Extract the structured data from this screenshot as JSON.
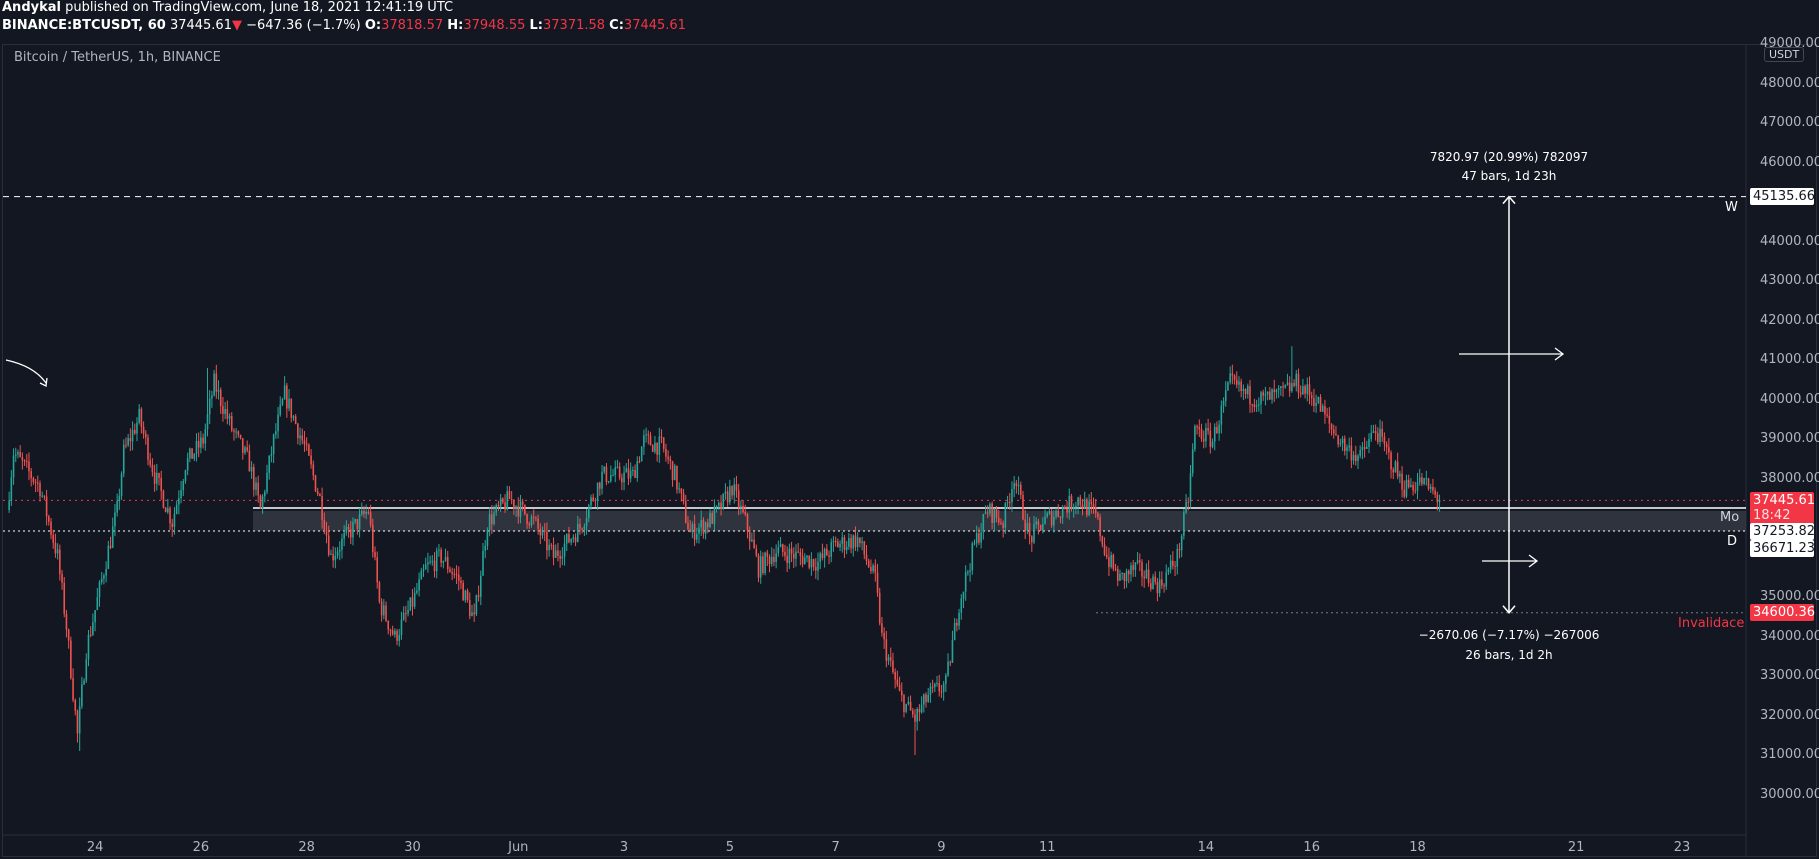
{
  "header": {
    "author": "Andykal",
    "published": "published on TradingView.com, June 18, 2021 12:41:19 UTC",
    "symbol": "BINANCE:BTCUSDT, 60",
    "last": "37445.61",
    "change": "−647.36 (−1.7%)",
    "o_label": "O:",
    "o": "37818.57",
    "h_label": "H:",
    "h": "37948.55",
    "l_label": "L:",
    "l": "37371.58",
    "c_label": "C:",
    "c": "37445.61"
  },
  "subtitle": "Bitcoin / TetherUS, 1h, BINANCE",
  "currency": "USDT",
  "colors": {
    "bg": "#131722",
    "up": "#26a69a",
    "down": "#ef5350",
    "accent_red": "#f23645"
  },
  "chart_data": {
    "type": "candlestick",
    "title": "Bitcoin / TetherUS, 1h, BINANCE",
    "ylim": [
      29000,
      49500
    ],
    "y_ticks": [
      49000,
      48000,
      47000,
      46000,
      45000,
      44000,
      43000,
      42000,
      41000,
      40000,
      39000,
      38000,
      37000,
      36000,
      35000,
      34000,
      33000,
      32000,
      31000,
      30000
    ],
    "y_ticks_hidden": [
      45000,
      37000,
      36000
    ],
    "x_ticks": [
      {
        "label": "24",
        "day": 0
      },
      {
        "label": "26",
        "day": 2
      },
      {
        "label": "28",
        "day": 4
      },
      {
        "label": "30",
        "day": 6
      },
      {
        "label": "Jun",
        "day": 8
      },
      {
        "label": "3",
        "day": 10
      },
      {
        "label": "5",
        "day": 12
      },
      {
        "label": "7",
        "day": 14
      },
      {
        "label": "9",
        "day": 16
      },
      {
        "label": "11",
        "day": 18
      },
      {
        "label": "14",
        "day": 21
      },
      {
        "label": "16",
        "day": 23
      },
      {
        "label": "18",
        "day": 25
      },
      {
        "label": "21",
        "day": 28
      },
      {
        "label": "23",
        "day": 30
      }
    ],
    "close_anchors_hours_from_may24": [
      [
        -40,
        37200
      ],
      [
        -37,
        38660
      ],
      [
        -25,
        37780
      ],
      [
        -17,
        36020
      ],
      [
        -13,
        34260
      ],
      [
        -8,
        31500
      ],
      [
        -4,
        33670
      ],
      [
        3,
        35430
      ],
      [
        10,
        37200
      ],
      [
        13,
        38660
      ],
      [
        20,
        39540
      ],
      [
        27,
        38080
      ],
      [
        35,
        36900
      ],
      [
        41,
        38370
      ],
      [
        49,
        38960
      ],
      [
        54,
        40420
      ],
      [
        62,
        39250
      ],
      [
        70,
        38370
      ],
      [
        75,
        37200
      ],
      [
        81,
        38960
      ],
      [
        86,
        40130
      ],
      [
        95,
        38810
      ],
      [
        102,
        37490
      ],
      [
        107,
        36020
      ],
      [
        115,
        36610
      ],
      [
        124,
        37200
      ],
      [
        129,
        34850
      ],
      [
        136,
        33970
      ],
      [
        144,
        34850
      ],
      [
        150,
        35730
      ],
      [
        157,
        36020
      ],
      [
        165,
        35430
      ],
      [
        172,
        34400
      ],
      [
        178,
        36900
      ],
      [
        188,
        37490
      ],
      [
        199,
        36900
      ],
      [
        208,
        36020
      ],
      [
        220,
        36760
      ],
      [
        230,
        38080
      ],
      [
        244,
        38080
      ],
      [
        249,
        38960
      ],
      [
        257,
        38810
      ],
      [
        263,
        38080
      ],
      [
        270,
        36610
      ],
      [
        278,
        36900
      ],
      [
        283,
        37200
      ],
      [
        289,
        37780
      ],
      [
        296,
        36760
      ],
      [
        301,
        35730
      ],
      [
        309,
        36170
      ],
      [
        320,
        36020
      ],
      [
        328,
        35870
      ],
      [
        336,
        36320
      ],
      [
        346,
        36460
      ],
      [
        354,
        35430
      ],
      [
        357,
        33970
      ],
      [
        365,
        32500
      ],
      [
        372,
        31910
      ],
      [
        378,
        32500
      ],
      [
        386,
        32790
      ],
      [
        392,
        34850
      ],
      [
        399,
        36320
      ],
      [
        405,
        37200
      ],
      [
        412,
        36900
      ],
      [
        417,
        38080
      ],
      [
        424,
        36460
      ],
      [
        430,
        36900
      ],
      [
        438,
        37200
      ],
      [
        446,
        37490
      ],
      [
        454,
        37050
      ],
      [
        459,
        36020
      ],
      [
        465,
        35430
      ],
      [
        472,
        35730
      ],
      [
        483,
        35290
      ],
      [
        491,
        36020
      ],
      [
        496,
        37490
      ],
      [
        499,
        39250
      ],
      [
        507,
        38960
      ],
      [
        515,
        40420
      ],
      [
        522,
        40130
      ],
      [
        530,
        39990
      ],
      [
        538,
        40130
      ],
      [
        545,
        40420
      ],
      [
        554,
        39990
      ],
      [
        561,
        39250
      ],
      [
        567,
        38810
      ],
      [
        574,
        38520
      ],
      [
        581,
        39250
      ],
      [
        586,
        38660
      ],
      [
        594,
        37780
      ],
      [
        602,
        37930
      ],
      [
        610,
        37446
      ]
    ],
    "extremes": {
      "lows": [
        [
          -7,
          31100
        ],
        [
          372,
          31000
        ]
      ],
      "highs": [
        [
          51,
          40800
        ],
        [
          543,
          41350
        ]
      ]
    },
    "last_price": 37445.61
  },
  "price_tags": {
    "last": "37445.61",
    "countdown": "18:42",
    "mo": "37253.82",
    "d": "36671.23",
    "w": "45135.66",
    "invalid": "34600.36"
  },
  "levels": {
    "w_label": "W",
    "mo_label": "Mo",
    "d_label": "D",
    "invalid_label": "Invalidace",
    "w": 45135.66,
    "mo": 37253.82,
    "d": 36671.23,
    "invalid": 34600.36
  },
  "measure": {
    "up_line1": "7820.97 (20.99%) 782097",
    "up_line2": "47 bars, 1d 23h",
    "down_line1": "−2670.06 (−7.17%) −267006",
    "down_line2": "26 bars, 1d 2h"
  }
}
